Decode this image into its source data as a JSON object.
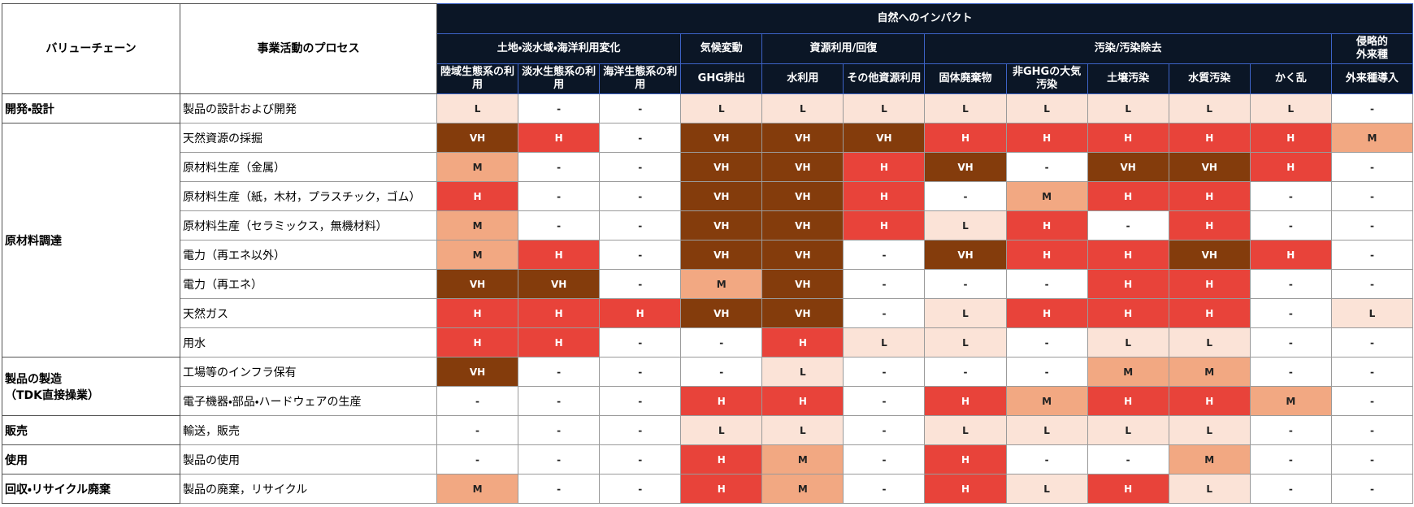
{
  "header": {
    "value_chain": "バリューチェーン",
    "process": "事業活動のプロセス",
    "impact": "自然へのインパクト"
  },
  "column_groups": [
    {
      "label": "土地・淡水域・海洋利用変化",
      "columns": [
        "陸域生態系の利用",
        "淡水生態系の利用",
        "海洋生態系の利用"
      ]
    },
    {
      "label": "気候変動",
      "columns": [
        "GHG排出"
      ]
    },
    {
      "label": "資源利用/回復",
      "columns": [
        "水利用",
        "その他資源利用"
      ]
    },
    {
      "label": "汚染/汚染除去",
      "columns": [
        "固体廃棄物",
        "非GHGの大気汚染",
        "土壌汚染",
        "水質汚染",
        "かく乱"
      ]
    },
    {
      "label": "侵略的\n外来種",
      "columns": [
        "外来種導入"
      ]
    }
  ],
  "level_colors": {
    "VH": "#843c0c",
    "H": "#e8433a",
    "M": "#f2a882",
    "L": "#fbe3d7",
    "-": "#ffffff"
  },
  "stages": [
    {
      "label": "開発・設計",
      "rows": [
        {
          "process": "製品の設計および開発",
          "cells": [
            "L",
            "-",
            "-",
            "L",
            "L",
            "L",
            "L",
            "L",
            "L",
            "L",
            "L",
            "-"
          ]
        }
      ]
    },
    {
      "label": "原材料調達",
      "rows": [
        {
          "process": "天然資源の採掘",
          "cells": [
            "VH",
            "H",
            "-",
            "VH",
            "VH",
            "VH",
            "H",
            "H",
            "H",
            "H",
            "H",
            "M"
          ]
        },
        {
          "process": "原材料生産（金属）",
          "cells": [
            "M",
            "-",
            "-",
            "VH",
            "VH",
            "H",
            "VH",
            "-",
            "VH",
            "VH",
            "H",
            "-"
          ]
        },
        {
          "process": "原材料生産（紙，木材，プラスチック，ゴム）",
          "cells": [
            "H",
            "-",
            "-",
            "VH",
            "VH",
            "H",
            "-",
            "M",
            "H",
            "H",
            "-",
            "-"
          ]
        },
        {
          "process": "原材料生産（セラミックス，無機材料）",
          "cells": [
            "M",
            "-",
            "-",
            "VH",
            "VH",
            "H",
            "L",
            "H",
            "-",
            "H",
            "-",
            "-"
          ]
        },
        {
          "process": "電力（再エネ以外）",
          "cells": [
            "M",
            "H",
            "-",
            "VH",
            "VH",
            "-",
            "VH",
            "H",
            "H",
            "VH",
            "H",
            "-"
          ]
        },
        {
          "process": "電力（再エネ）",
          "cells": [
            "VH",
            "VH",
            "-",
            "M",
            "VH",
            "-",
            "-",
            "-",
            "H",
            "H",
            "-",
            "-"
          ]
        },
        {
          "process": "天然ガス",
          "cells": [
            "H",
            "H",
            "H",
            "VH",
            "VH",
            "-",
            "L",
            "H",
            "H",
            "H",
            "-",
            "L"
          ]
        },
        {
          "process": "用水",
          "cells": [
            "H",
            "H",
            "-",
            "-",
            "H",
            "L",
            "L",
            "-",
            "L",
            "L",
            "-",
            "-"
          ]
        }
      ]
    },
    {
      "label": "製品の製造\n（TDK直接操業）",
      "rows": [
        {
          "process": "工場等のインフラ保有",
          "cells": [
            "VH",
            "-",
            "-",
            "-",
            "L",
            "-",
            "-",
            "-",
            "M",
            "M",
            "-",
            "-"
          ]
        },
        {
          "process": "電子機器・部品・ハードウェアの生産",
          "cells": [
            "-",
            "-",
            "-",
            "H",
            "H",
            "-",
            "H",
            "M",
            "H",
            "H",
            "M",
            "-"
          ]
        }
      ]
    },
    {
      "label": "販売",
      "rows": [
        {
          "process": "輸送，販売",
          "cells": [
            "-",
            "-",
            "-",
            "L",
            "L",
            "-",
            "L",
            "L",
            "L",
            "L",
            "-",
            "-"
          ]
        }
      ]
    },
    {
      "label": "使用",
      "rows": [
        {
          "process": "製品の使用",
          "cells": [
            "-",
            "-",
            "-",
            "H",
            "M",
            "-",
            "H",
            "-",
            "-",
            "M",
            "-",
            "-"
          ]
        }
      ]
    },
    {
      "label": "回収・リサイクル廃棄",
      "rows": [
        {
          "process": "製品の廃棄，リサイクル",
          "cells": [
            "M",
            "-",
            "-",
            "H",
            "M",
            "-",
            "H",
            "L",
            "H",
            "L",
            "-",
            "-"
          ]
        }
      ]
    }
  ]
}
